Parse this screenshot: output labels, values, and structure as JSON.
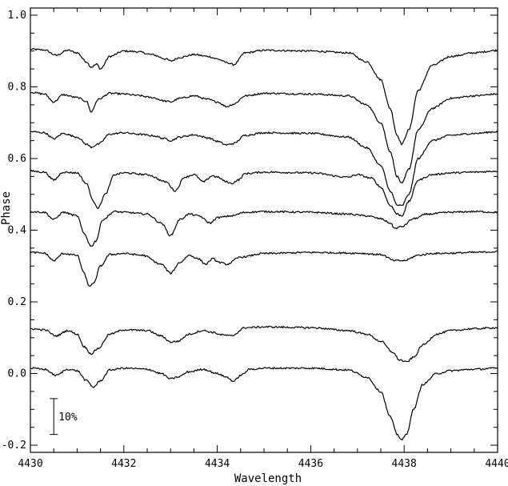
{
  "chart_data": {
    "type": "line",
    "title": "",
    "xlabel": "Wavelength",
    "ylabel": "Phase",
    "xlim": [
      4430,
      4440
    ],
    "ylim": [
      -0.22,
      1.02
    ],
    "x_ticks": [
      4430,
      4432,
      4434,
      4436,
      4438,
      4440
    ],
    "x_tick_labels": [
      "4430",
      "4432",
      "4434",
      "4436",
      "4438",
      "4440"
    ],
    "y_ticks": [
      -0.2,
      0.0,
      0.2,
      0.4,
      0.6,
      0.8,
      1.0
    ],
    "y_tick_labels": [
      "-0.2",
      "0.0",
      "0.2",
      "0.4",
      "0.6",
      "0.8",
      "1.0"
    ],
    "grid": false,
    "scale_bar": {
      "label": "10%",
      "wavelength": 4430.5,
      "y_top": -0.07,
      "y_bottom": -0.17
    },
    "series": [
      {
        "baseline": 0.9,
        "x": [
          4430,
          4430.3,
          4430.55,
          4430.8,
          4431.0,
          4431.2,
          4431.3,
          4431.42,
          4431.5,
          4431.7,
          4432.0,
          4432.3,
          4432.6,
          4432.9,
          4433.0,
          4433.2,
          4433.5,
          4433.8,
          4434.0,
          4434.2,
          4434.35,
          4434.6,
          4435.0,
          4436.0,
          4436.8,
          4437.2,
          4437.5,
          4437.7,
          4437.85,
          4437.95,
          4438.1,
          4438.3,
          4438.6,
          4439.0,
          4439.5,
          4440
        ],
        "y": [
          0.905,
          0.903,
          0.888,
          0.902,
          0.895,
          0.87,
          0.855,
          0.863,
          0.85,
          0.885,
          0.9,
          0.898,
          0.89,
          0.878,
          0.872,
          0.882,
          0.89,
          0.885,
          0.878,
          0.868,
          0.862,
          0.895,
          0.902,
          0.9,
          0.895,
          0.87,
          0.82,
          0.74,
          0.665,
          0.64,
          0.68,
          0.79,
          0.86,
          0.885,
          0.895,
          0.902
        ]
      },
      {
        "baseline": 0.78,
        "x": [
          4430,
          4430.3,
          4430.5,
          4430.7,
          4431.0,
          4431.2,
          4431.3,
          4431.45,
          4431.7,
          4432.0,
          4432.3,
          4432.6,
          4432.9,
          4433.0,
          4433.2,
          4433.5,
          4433.8,
          4434.0,
          4434.2,
          4434.35,
          4434.6,
          4435.0,
          4436.0,
          4436.8,
          4437.2,
          4437.5,
          4437.7,
          4437.85,
          4437.95,
          4438.1,
          4438.3,
          4438.6,
          4439.0,
          4439.5,
          4440
        ],
        "y": [
          0.785,
          0.78,
          0.758,
          0.778,
          0.77,
          0.76,
          0.73,
          0.765,
          0.782,
          0.78,
          0.776,
          0.77,
          0.76,
          0.758,
          0.768,
          0.775,
          0.765,
          0.758,
          0.745,
          0.752,
          0.775,
          0.782,
          0.78,
          0.775,
          0.75,
          0.7,
          0.62,
          0.55,
          0.53,
          0.57,
          0.68,
          0.74,
          0.768,
          0.775,
          0.78
        ]
      },
      {
        "baseline": 0.67,
        "x": [
          4430,
          4430.3,
          4430.5,
          4430.7,
          4431.0,
          4431.2,
          4431.3,
          4431.45,
          4431.7,
          4432.0,
          4432.3,
          4432.6,
          4432.9,
          4433.0,
          4433.2,
          4433.5,
          4433.8,
          4434.0,
          4434.2,
          4434.35,
          4434.6,
          4435.0,
          4436.0,
          4436.8,
          4437.2,
          4437.5,
          4437.7,
          4437.85,
          4437.95,
          4438.1,
          4438.3,
          4438.6,
          4439.0,
          4439.5,
          4440
        ],
        "y": [
          0.675,
          0.672,
          0.655,
          0.67,
          0.66,
          0.64,
          0.632,
          0.64,
          0.668,
          0.672,
          0.668,
          0.664,
          0.655,
          0.65,
          0.66,
          0.666,
          0.658,
          0.648,
          0.638,
          0.642,
          0.665,
          0.672,
          0.67,
          0.66,
          0.63,
          0.58,
          0.51,
          0.47,
          0.468,
          0.5,
          0.6,
          0.65,
          0.665,
          0.67,
          0.675
        ]
      },
      {
        "baseline": 0.56,
        "x": [
          4430,
          4430.3,
          4430.5,
          4430.7,
          4431.0,
          4431.2,
          4431.35,
          4431.45,
          4431.6,
          4431.8,
          4432.0,
          4432.5,
          4432.9,
          4433.1,
          4433.3,
          4433.5,
          4433.7,
          4433.9,
          4434.0,
          4434.2,
          4434.3,
          4434.45,
          4434.6,
          4435.0,
          4436.0,
          4436.8,
          4437.0,
          4437.3,
          4437.5,
          4437.7,
          4437.85,
          4437.95,
          4438.1,
          4438.3,
          4438.6,
          4439.0,
          4439.5,
          4440
        ],
        "y": [
          0.565,
          0.562,
          0.54,
          0.562,
          0.56,
          0.53,
          0.48,
          0.462,
          0.5,
          0.555,
          0.56,
          0.555,
          0.535,
          0.51,
          0.548,
          0.555,
          0.535,
          0.552,
          0.548,
          0.535,
          0.53,
          0.54,
          0.558,
          0.562,
          0.56,
          0.548,
          0.555,
          0.545,
          0.52,
          0.47,
          0.445,
          0.44,
          0.48,
          0.54,
          0.555,
          0.56,
          0.562,
          0.565
        ]
      },
      {
        "baseline": 0.45,
        "x": [
          4430,
          4430.3,
          4430.5,
          4430.7,
          4431.0,
          4431.15,
          4431.3,
          4431.4,
          4431.55,
          4431.8,
          4432.0,
          4432.5,
          4432.8,
          4433.0,
          4433.2,
          4433.4,
          4433.6,
          4433.85,
          4434.0,
          4434.3,
          4434.6,
          4435.0,
          4436.0,
          4436.8,
          4437.2,
          4437.5,
          4437.7,
          4437.8,
          4437.95,
          4438.2,
          4438.5,
          4439.0,
          4439.5,
          4440
        ],
        "y": [
          0.452,
          0.45,
          0.43,
          0.45,
          0.44,
          0.39,
          0.355,
          0.37,
          0.43,
          0.452,
          0.45,
          0.445,
          0.42,
          0.385,
          0.43,
          0.445,
          0.44,
          0.42,
          0.435,
          0.44,
          0.45,
          0.452,
          0.45,
          0.445,
          0.44,
          0.432,
          0.42,
          0.405,
          0.41,
          0.432,
          0.445,
          0.45,
          0.452,
          0.45
        ]
      },
      {
        "baseline": 0.34,
        "x": [
          4430,
          4430.3,
          4430.5,
          4430.7,
          4431.0,
          4431.15,
          4431.25,
          4431.35,
          4431.5,
          4431.7,
          4432.0,
          4432.4,
          4432.8,
          4433.0,
          4433.2,
          4433.4,
          4433.6,
          4433.75,
          4433.9,
          4434.05,
          4434.2,
          4434.5,
          4435.0,
          4436.0,
          4437.0,
          4437.5,
          4437.8,
          4438.0,
          4438.3,
          4438.6,
          4439.0,
          4439.5,
          4440
        ],
        "y": [
          0.338,
          0.336,
          0.315,
          0.335,
          0.33,
          0.28,
          0.245,
          0.25,
          0.3,
          0.332,
          0.335,
          0.33,
          0.305,
          0.28,
          0.31,
          0.33,
          0.32,
          0.305,
          0.32,
          0.31,
          0.305,
          0.325,
          0.335,
          0.338,
          0.336,
          0.332,
          0.315,
          0.315,
          0.33,
          0.335,
          0.336,
          0.338,
          0.34
        ]
      },
      {
        "baseline": 0.12,
        "x": [
          4430,
          4430.3,
          4430.55,
          4430.8,
          4431.0,
          4431.15,
          4431.3,
          4431.45,
          4431.7,
          4432.0,
          4432.5,
          4432.8,
          4433.0,
          4433.15,
          4433.4,
          4433.7,
          4433.9,
          4434.1,
          4434.3,
          4434.6,
          4435.0,
          4436.0,
          4436.8,
          4437.2,
          4437.5,
          4437.75,
          4437.9,
          4438.05,
          4438.2,
          4438.4,
          4438.7,
          4439.0,
          4439.5,
          4440
        ],
        "y": [
          0.125,
          0.122,
          0.105,
          0.12,
          0.11,
          0.075,
          0.055,
          0.07,
          0.11,
          0.122,
          0.12,
          0.105,
          0.088,
          0.09,
          0.11,
          0.12,
          0.115,
          0.108,
          0.105,
          0.128,
          0.13,
          0.128,
          0.12,
          0.11,
          0.09,
          0.06,
          0.038,
          0.032,
          0.045,
          0.08,
          0.11,
          0.12,
          0.125,
          0.128
        ]
      },
      {
        "baseline": 0.01,
        "x": [
          4430,
          4430.3,
          4430.55,
          4430.8,
          4431.0,
          4431.2,
          4431.35,
          4431.5,
          4431.7,
          4432.0,
          4432.5,
          4432.8,
          4433.0,
          4433.15,
          4433.4,
          4433.7,
          4434.0,
          4434.2,
          4434.35,
          4434.5,
          4434.7,
          4435.0,
          4436.0,
          4436.8,
          4437.2,
          4437.5,
          4437.7,
          4437.85,
          4437.95,
          4438.05,
          4438.2,
          4438.4,
          4438.7,
          4439.0,
          4439.5,
          4440
        ],
        "y": [
          0.015,
          0.012,
          -0.005,
          0.012,
          0.008,
          -0.02,
          -0.038,
          -0.02,
          0.01,
          0.015,
          0.012,
          0.0,
          -0.015,
          -0.01,
          0.005,
          0.012,
          0.0,
          -0.01,
          -0.022,
          -0.005,
          0.012,
          0.015,
          0.015,
          0.01,
          -0.01,
          -0.05,
          -0.12,
          -0.17,
          -0.185,
          -0.17,
          -0.1,
          -0.03,
          0.0,
          0.008,
          0.012,
          0.015
        ]
      }
    ]
  }
}
